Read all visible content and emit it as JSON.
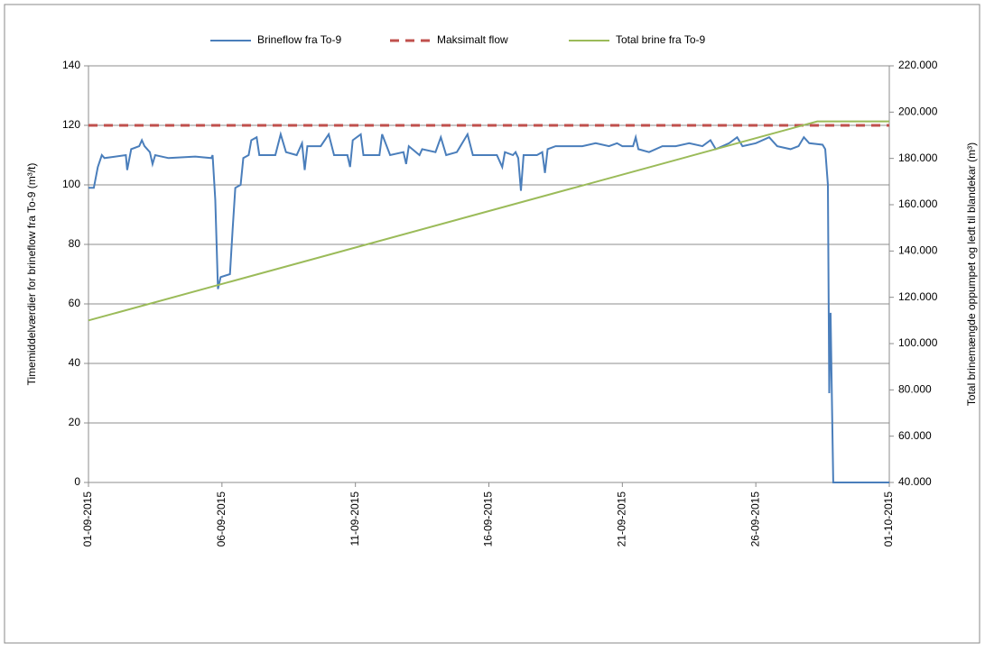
{
  "chart_data": {
    "type": "line",
    "ylabel": "Timemiddelværdier for brineflow fra To-9 (m³/t)",
    "y2label": "Total brinemængde oppumpet og ledt til blandekar (m³)",
    "xlim": [
      0,
      30
    ],
    "xticks": [
      {
        "value": 0,
        "label": "01-09-2015"
      },
      {
        "value": 5,
        "label": "06-09-2015"
      },
      {
        "value": 10,
        "label": "11-09-2015"
      },
      {
        "value": 15,
        "label": "16-09-2015"
      },
      {
        "value": 20,
        "label": "21-09-2015"
      },
      {
        "value": 25,
        "label": "26-09-2015"
      },
      {
        "value": 30,
        "label": "01-10-2015"
      }
    ],
    "ylim": [
      0,
      140
    ],
    "yticks": [
      0,
      20,
      40,
      60,
      80,
      100,
      120,
      140
    ],
    "y2lim": [
      40000,
      220000
    ],
    "y2ticks": [
      {
        "value": 40000,
        "label": "40.000"
      },
      {
        "value": 60000,
        "label": "60.000"
      },
      {
        "value": 80000,
        "label": "80.000"
      },
      {
        "value": 100000,
        "label": "100.000"
      },
      {
        "value": 120000,
        "label": "120.000"
      },
      {
        "value": 140000,
        "label": "140.000"
      },
      {
        "value": 160000,
        "label": "160.000"
      },
      {
        "value": 180000,
        "label": "180.000"
      },
      {
        "value": 200000,
        "label": "200.000"
      },
      {
        "value": 220000,
        "label": "220.000"
      }
    ],
    "grid": true,
    "legend": "top",
    "series": [
      {
        "name": "Brineflow fra To-9",
        "color": "#4a7ebb",
        "dash": false,
        "x": [
          0,
          0.2,
          0.35,
          0.5,
          0.6,
          1.4,
          1.45,
          1.6,
          1.9,
          2.0,
          2.1,
          2.3,
          2.4,
          2.5,
          3,
          4,
          4.6,
          4.65,
          4.75,
          4.85,
          4.95,
          5.3,
          5.4,
          5.5,
          5.7,
          5.8,
          6.0,
          6.1,
          6.3,
          6.4,
          7,
          7.2,
          7.4,
          7.8,
          8.0,
          8.1,
          8.2,
          8.7,
          9.0,
          9.2,
          9.7,
          9.8,
          9.9,
          10.2,
          10.3,
          10.9,
          11.0,
          11.3,
          11.8,
          11.9,
          12.0,
          12.4,
          12.5,
          13,
          13.2,
          13.4,
          13.8,
          14.2,
          14.4,
          15,
          15.3,
          15.5,
          15.6,
          15.9,
          16.0,
          16.1,
          16.2,
          16.3,
          16.8,
          17.0,
          17.1,
          17.2,
          17.5,
          18,
          18.5,
          19,
          19.5,
          19.8,
          20,
          20.4,
          20.5,
          20.6,
          21,
          21.5,
          22,
          22.5,
          23,
          23.3,
          23.5,
          24,
          24.3,
          24.5,
          25,
          25.5,
          25.8,
          26.3,
          26.6,
          26.8,
          27,
          27.5,
          27.6,
          27.7,
          27.75,
          27.8,
          27.85,
          27.9,
          30
        ],
        "values": [
          99,
          99,
          106,
          110,
          109,
          110,
          105,
          112,
          113,
          115,
          113,
          111,
          107,
          110,
          109,
          109.5,
          109,
          110,
          95,
          65,
          69,
          70,
          85,
          99,
          100,
          109,
          110,
          115,
          116,
          110,
          110,
          117,
          111,
          110,
          114,
          105,
          113,
          113,
          117,
          110,
          110,
          106,
          115,
          117,
          110,
          110,
          117,
          110,
          111,
          107,
          113,
          110,
          112,
          111,
          116,
          110,
          111,
          117,
          110,
          110,
          110,
          106,
          111,
          110,
          111,
          109,
          98,
          110,
          110,
          111,
          104,
          112,
          113,
          113,
          113,
          114,
          113,
          114,
          113,
          113,
          116,
          112,
          111,
          113,
          113,
          114,
          113,
          115,
          112,
          114,
          116,
          113,
          114,
          116,
          113,
          112,
          113,
          116,
          114,
          113.5,
          112,
          100,
          30,
          57,
          28,
          0,
          0
        ]
      },
      {
        "name": "Maksimalt flow",
        "color": "#c0504d",
        "dash": true,
        "x": [
          0,
          30
        ],
        "values": [
          120,
          120
        ]
      },
      {
        "name": "Total brine fra To-9",
        "color": "#9bbb59",
        "dash": false,
        "axis": "y2",
        "x": [
          0,
          27.3,
          30
        ],
        "values": [
          110000,
          196000,
          196000
        ]
      }
    ]
  }
}
